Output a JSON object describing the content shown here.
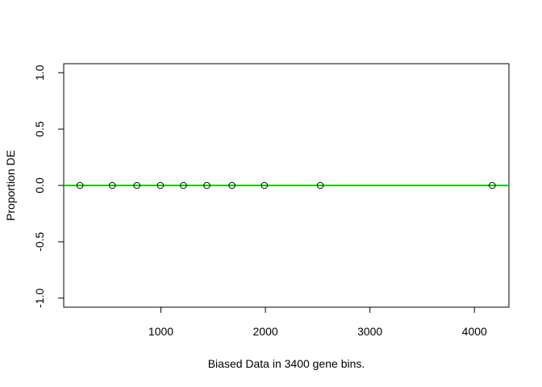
{
  "chart_data": {
    "type": "scatter",
    "title": "",
    "xlabel": "Biased Data in 3400 gene bins.",
    "ylabel": "Proportion DE",
    "xlim": [
      70,
      4330
    ],
    "ylim": [
      -1.08,
      1.08
    ],
    "x_ticks": [
      1000,
      2000,
      3000,
      4000
    ],
    "y_ticks": [
      -1.0,
      -0.5,
      0.0,
      0.5,
      1.0
    ],
    "x_tick_labels": [
      "1000",
      "2000",
      "3000",
      "4000"
    ],
    "y_tick_labels": [
      "-1.0",
      "-0.5",
      "0.0",
      "0.5",
      "1.0"
    ],
    "points": {
      "x": [
        225,
        535,
        770,
        995,
        1215,
        1440,
        1680,
        1990,
        2525,
        4170
      ],
      "y": [
        0,
        0,
        0,
        0,
        0,
        0,
        0,
        0,
        0,
        0
      ]
    },
    "reference_line": {
      "y": 0,
      "color": "#00cc00"
    },
    "point_color": "#000000",
    "grid": false,
    "legend": "none"
  }
}
